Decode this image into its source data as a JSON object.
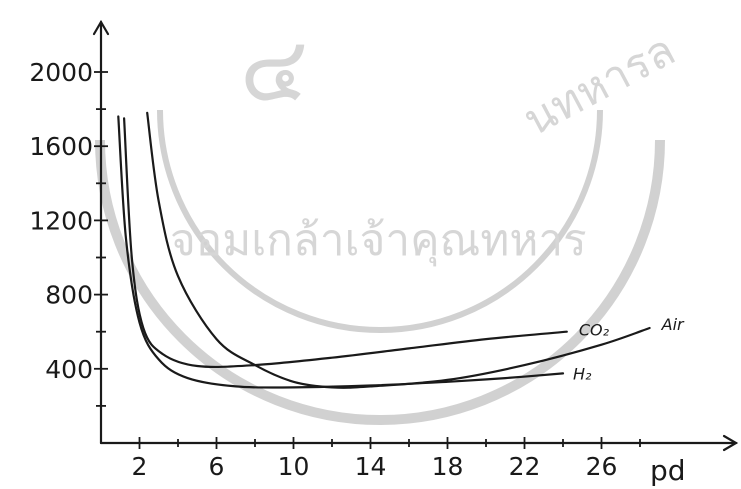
{
  "chart_data": {
    "type": "line",
    "xlabel": "pd",
    "ylabel": "",
    "title": "",
    "xlim": [
      0,
      32
    ],
    "ylim": [
      0,
      2200
    ],
    "x_ticks": [
      2,
      6,
      10,
      14,
      18,
      22,
      26
    ],
    "y_ticks": [
      400,
      800,
      1200,
      1600,
      2000
    ],
    "grid": false,
    "series": [
      {
        "name": "CO₂",
        "points": [
          [
            1.2,
            1750
          ],
          [
            1.6,
            1000
          ],
          [
            2.2,
            620
          ],
          [
            3.2,
            480
          ],
          [
            5,
            415
          ],
          [
            8,
            420
          ],
          [
            12,
            460
          ],
          [
            16,
            510
          ],
          [
            20,
            560
          ],
          [
            24.2,
            600
          ]
        ]
      },
      {
        "name": "Air",
        "points": [
          [
            2.4,
            1780
          ],
          [
            3,
            1300
          ],
          [
            4,
            900
          ],
          [
            6,
            560
          ],
          [
            8,
            420
          ],
          [
            10,
            330
          ],
          [
            12,
            300
          ],
          [
            14,
            305
          ],
          [
            18,
            340
          ],
          [
            22,
            420
          ],
          [
            26,
            530
          ],
          [
            28.5,
            620
          ]
        ]
      },
      {
        "name": "H₂",
        "points": [
          [
            0.9,
            1760
          ],
          [
            1.3,
            1100
          ],
          [
            2,
            650
          ],
          [
            3,
            450
          ],
          [
            4.5,
            350
          ],
          [
            7,
            305
          ],
          [
            10,
            300
          ],
          [
            14,
            310
          ],
          [
            18,
            330
          ],
          [
            21,
            350
          ],
          [
            24,
            375
          ]
        ]
      }
    ],
    "annotations": [
      "CO₂",
      "Air",
      "H₂"
    ]
  },
  "watermark": {
    "text": "จอมเกล้าเจ้าคุณทหาร",
    "arc_text": "นทหารล",
    "numeral": "๔"
  }
}
